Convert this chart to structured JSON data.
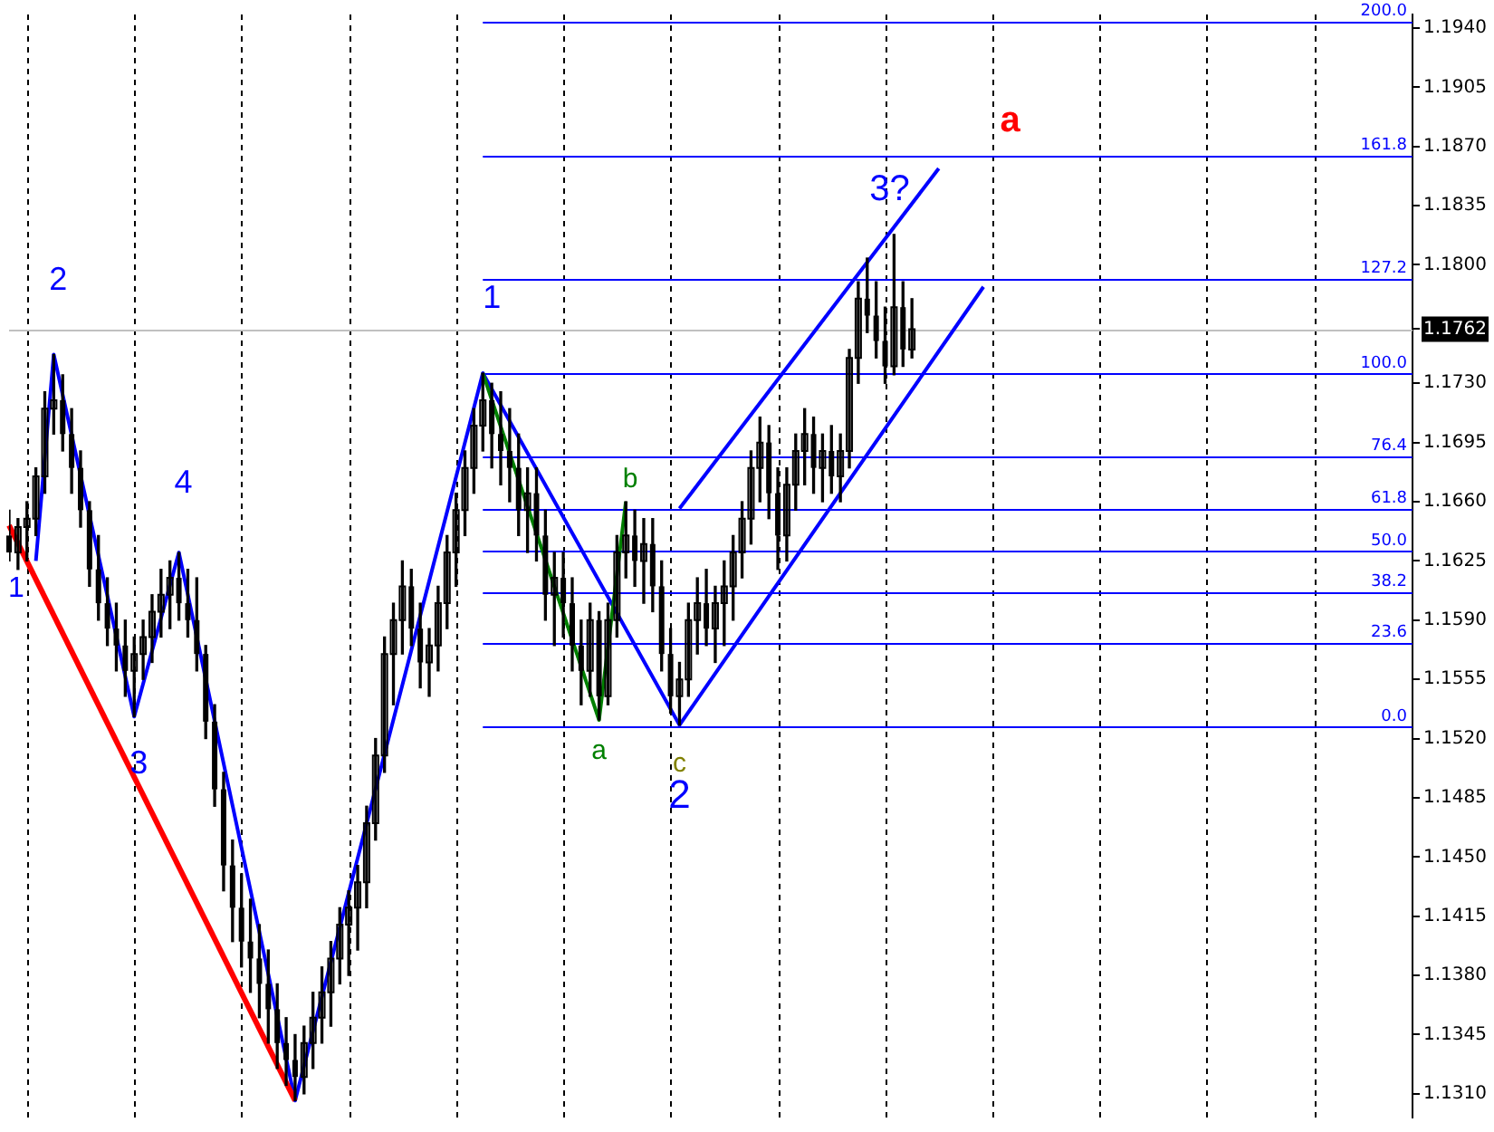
{
  "chart_data": {
    "type": "candlestick",
    "color": "#000000",
    "categories": [
      null,
      null,
      null,
      null,
      null,
      null,
      null,
      null,
      null,
      null,
      null,
      null,
      null,
      null,
      null,
      null,
      null,
      null,
      null,
      null,
      null,
      null,
      null,
      null,
      null,
      null,
      null,
      null,
      null,
      null,
      null,
      null,
      null,
      null,
      null,
      null,
      null,
      null,
      null,
      null,
      null,
      null,
      null,
      null,
      null,
      null,
      null,
      null,
      null,
      null,
      null,
      null,
      null,
      null,
      null,
      null,
      null,
      null,
      null,
      null,
      null,
      null,
      null,
      null,
      null,
      null,
      null,
      null,
      null,
      null,
      null,
      null,
      null,
      null,
      null,
      null,
      null,
      null,
      null,
      null,
      null,
      null,
      null,
      null,
      null,
      null,
      null,
      null,
      null,
      null,
      null,
      null,
      null,
      null,
      null,
      null,
      null,
      null,
      null,
      null,
      null,
      null,
      null,
      null,
      null,
      null,
      null,
      null,
      null,
      null,
      null,
      null,
      null,
      null,
      null,
      null,
      null,
      null,
      null,
      null,
      null,
      null,
      null,
      null,
      null,
      null,
      null,
      null,
      null,
      null,
      null,
      null,
      null,
      null,
      null,
      null,
      null,
      null,
      null,
      null,
      null,
      null,
      null,
      null,
      null,
      null,
      null,
      null,
      null,
      null,
      null,
      null,
      null,
      null,
      null,
      null,
      null,
      null
    ],
    "ohlc": [
      [
        1.164,
        1.1655,
        1.1625,
        1.163
      ],
      [
        1.163,
        1.165,
        1.162,
        1.1645
      ],
      [
        1.1645,
        1.166,
        1.1625,
        1.165
      ],
      [
        1.165,
        1.168,
        1.164,
        1.1675
      ],
      [
        1.1675,
        1.1725,
        1.1665,
        1.1715
      ],
      [
        1.1715,
        1.1747,
        1.17,
        1.172
      ],
      [
        1.172,
        1.1735,
        1.169,
        1.17
      ],
      [
        1.17,
        1.1715,
        1.1665,
        1.168
      ],
      [
        1.168,
        1.169,
        1.1645,
        1.1655
      ],
      [
        1.1655,
        1.166,
        1.161,
        1.162
      ],
      [
        1.162,
        1.164,
        1.159,
        1.16
      ],
      [
        1.16,
        1.1615,
        1.1575,
        1.1585
      ],
      [
        1.1585,
        1.16,
        1.156,
        1.1575
      ],
      [
        1.1575,
        1.159,
        1.1545,
        1.156
      ],
      [
        1.156,
        1.158,
        1.1533,
        1.157
      ],
      [
        1.157,
        1.159,
        1.1555,
        1.158
      ],
      [
        1.158,
        1.1605,
        1.1565,
        1.1595
      ],
      [
        1.1595,
        1.162,
        1.158,
        1.1605
      ],
      [
        1.1605,
        1.1625,
        1.1585,
        1.1615
      ],
      [
        1.1615,
        1.163,
        1.159,
        1.16
      ],
      [
        1.16,
        1.162,
        1.158,
        1.159
      ],
      [
        1.159,
        1.1615,
        1.156,
        1.157
      ],
      [
        1.157,
        1.1575,
        1.152,
        1.153
      ],
      [
        1.153,
        1.154,
        1.148,
        1.149
      ],
      [
        1.149,
        1.15,
        1.143,
        1.1445
      ],
      [
        1.1445,
        1.146,
        1.14,
        1.142
      ],
      [
        1.142,
        1.144,
        1.1385,
        1.14
      ],
      [
        1.14,
        1.1425,
        1.137,
        1.139
      ],
      [
        1.139,
        1.141,
        1.1355,
        1.1375
      ],
      [
        1.1375,
        1.1395,
        1.134,
        1.136
      ],
      [
        1.136,
        1.1375,
        1.1325,
        1.134
      ],
      [
        1.134,
        1.1355,
        1.1315,
        1.133
      ],
      [
        1.133,
        1.1345,
        1.1306,
        1.132
      ],
      [
        1.132,
        1.135,
        1.131,
        1.134
      ],
      [
        1.134,
        1.137,
        1.1325,
        1.1355
      ],
      [
        1.1355,
        1.1385,
        1.134,
        1.137
      ],
      [
        1.137,
        1.14,
        1.135,
        1.139
      ],
      [
        1.139,
        1.142,
        1.1375,
        1.141
      ],
      [
        1.141,
        1.143,
        1.138,
        1.142
      ],
      [
        1.142,
        1.1445,
        1.1395,
        1.1435
      ],
      [
        1.1435,
        1.148,
        1.142,
        1.147
      ],
      [
        1.147,
        1.152,
        1.146,
        1.151
      ],
      [
        1.151,
        1.158,
        1.15,
        1.157
      ],
      [
        1.157,
        1.16,
        1.154,
        1.159
      ],
      [
        1.159,
        1.1625,
        1.157,
        1.161
      ],
      [
        1.161,
        1.162,
        1.1575,
        1.1585
      ],
      [
        1.1585,
        1.16,
        1.155,
        1.1565
      ],
      [
        1.1565,
        1.1585,
        1.1545,
        1.1575
      ],
      [
        1.1575,
        1.161,
        1.156,
        1.16
      ],
      [
        1.16,
        1.164,
        1.1585,
        1.163
      ],
      [
        1.163,
        1.1665,
        1.161,
        1.1655
      ],
      [
        1.1655,
        1.169,
        1.164,
        1.168
      ],
      [
        1.168,
        1.1715,
        1.1665,
        1.1705
      ],
      [
        1.1705,
        1.1736,
        1.169,
        1.172
      ],
      [
        1.172,
        1.173,
        1.168,
        1.17
      ],
      [
        1.17,
        1.1725,
        1.167,
        1.169
      ],
      [
        1.169,
        1.1715,
        1.166,
        1.168
      ],
      [
        1.168,
        1.17,
        1.164,
        1.1655
      ],
      [
        1.1655,
        1.168,
        1.163,
        1.1665
      ],
      [
        1.1665,
        1.168,
        1.1625,
        1.164
      ],
      [
        1.164,
        1.1655,
        1.159,
        1.1605
      ],
      [
        1.1605,
        1.163,
        1.1575,
        1.1615
      ],
      [
        1.1615,
        1.163,
        1.158,
        1.16
      ],
      [
        1.16,
        1.1615,
        1.156,
        1.1575
      ],
      [
        1.1575,
        1.159,
        1.154,
        1.156
      ],
      [
        1.156,
        1.16,
        1.1545,
        1.159
      ],
      [
        1.159,
        1.1595,
        1.1531,
        1.1545
      ],
      [
        1.1545,
        1.16,
        1.154,
        1.159
      ],
      [
        1.159,
        1.164,
        1.158,
        1.163
      ],
      [
        1.163,
        1.166,
        1.1615,
        1.164
      ],
      [
        1.164,
        1.1655,
        1.161,
        1.1625
      ],
      [
        1.1625,
        1.165,
        1.16,
        1.1635
      ],
      [
        1.1635,
        1.165,
        1.1595,
        1.161
      ],
      [
        1.161,
        1.1625,
        1.156,
        1.157
      ],
      [
        1.157,
        1.1585,
        1.1535,
        1.1545
      ],
      [
        1.1545,
        1.1565,
        1.1528,
        1.1555
      ],
      [
        1.1555,
        1.16,
        1.1545,
        1.159
      ],
      [
        1.159,
        1.1615,
        1.157,
        1.16
      ],
      [
        1.16,
        1.162,
        1.1575,
        1.1585
      ],
      [
        1.1585,
        1.161,
        1.1565,
        1.16
      ],
      [
        1.16,
        1.1625,
        1.1575,
        1.161
      ],
      [
        1.161,
        1.164,
        1.159,
        1.163
      ],
      [
        1.163,
        1.166,
        1.1615,
        1.165
      ],
      [
        1.165,
        1.169,
        1.1635,
        1.168
      ],
      [
        1.168,
        1.171,
        1.166,
        1.1695
      ],
      [
        1.1695,
        1.1705,
        1.165,
        1.1665
      ],
      [
        1.1665,
        1.168,
        1.162,
        1.164
      ],
      [
        1.164,
        1.168,
        1.1625,
        1.167
      ],
      [
        1.167,
        1.17,
        1.1655,
        1.169
      ],
      [
        1.169,
        1.1715,
        1.167,
        1.17
      ],
      [
        1.17,
        1.171,
        1.1665,
        1.168
      ],
      [
        1.168,
        1.17,
        1.166,
        1.169
      ],
      [
        1.169,
        1.1705,
        1.1665,
        1.1675
      ],
      [
        1.1675,
        1.17,
        1.166,
        1.169
      ],
      [
        1.169,
        1.175,
        1.168,
        1.1745
      ],
      [
        1.1745,
        1.179,
        1.173,
        1.178
      ],
      [
        1.178,
        1.1804,
        1.176,
        1.177
      ],
      [
        1.177,
        1.179,
        1.1745,
        1.1755
      ],
      [
        1.1755,
        1.1775,
        1.173,
        1.174
      ],
      [
        1.174,
        1.1818,
        1.1735,
        1.1775
      ],
      [
        1.1775,
        1.179,
        1.174,
        1.175
      ],
      [
        1.175,
        1.178,
        1.1745,
        1.1762
      ],
      null,
      null,
      null,
      null,
      null,
      null,
      null,
      null,
      null,
      null,
      null,
      null,
      null,
      null,
      null,
      null,
      null,
      null,
      null,
      null,
      null,
      null,
      null,
      null,
      null,
      null,
      null,
      null,
      null,
      null,
      null,
      null,
      null,
      null,
      null,
      null,
      null,
      null,
      null,
      null,
      null,
      null,
      null,
      null,
      null,
      null,
      null,
      null,
      null,
      null,
      null,
      null,
      null,
      null,
      null,
      null
    ],
    "series": [
      {
        "type": "line",
        "color": "#0000ff",
        "values": [
          null,
          null,
          null,
          1.1625,
          null,
          1.1747,
          null,
          null,
          null,
          null,
          null,
          null,
          null,
          null,
          1.1533,
          null,
          null,
          null,
          null,
          1.163,
          null,
          null,
          null,
          null,
          null,
          null,
          null,
          null,
          null,
          null,
          null,
          null,
          1.1306,
          null,
          null,
          null,
          null,
          null,
          null,
          null,
          null,
          null,
          null,
          null,
          null,
          null,
          null,
          null,
          null,
          null,
          null,
          null,
          null,
          1.1736,
          null,
          null,
          null,
          null,
          null,
          null,
          null,
          null,
          null,
          null,
          null,
          null,
          null,
          null,
          null,
          null,
          null,
          null,
          null,
          null,
          null,
          1.1528,
          null,
          null,
          null,
          null,
          null,
          null,
          null,
          null,
          null,
          null,
          null,
          null,
          null,
          null,
          null,
          null,
          null,
          null,
          null,
          null,
          null,
          null,
          null,
          null,
          null,
          null,
          null,
          null,
          null,
          null,
          null,
          null,
          null,
          1.1787,
          null,
          null,
          null,
          null,
          null,
          null,
          null,
          null,
          null,
          null,
          null,
          null,
          null,
          null,
          null,
          null,
          null,
          null,
          null,
          null,
          null,
          null,
          null,
          null,
          null,
          null,
          null,
          null,
          null,
          null,
          null,
          null,
          null,
          null,
          null,
          null,
          null,
          null,
          null,
          null,
          null,
          null,
          null,
          null,
          null,
          null,
          null,
          null
        ]
      },
      {
        "type": "line",
        "color": "#0000ff",
        "values": [
          null,
          null,
          null,
          null,
          null,
          null,
          null,
          null,
          null,
          null,
          null,
          null,
          null,
          null,
          null,
          null,
          null,
          null,
          null,
          null,
          null,
          null,
          null,
          null,
          null,
          null,
          null,
          null,
          null,
          null,
          null,
          null,
          null,
          null,
          null,
          null,
          null,
          null,
          null,
          null,
          null,
          null,
          null,
          null,
          null,
          null,
          null,
          null,
          null,
          null,
          null,
          null,
          null,
          null,
          null,
          null,
          null,
          null,
          null,
          null,
          null,
          null,
          null,
          null,
          null,
          null,
          null,
          null,
          null,
          null,
          null,
          null,
          null,
          null,
          null,
          1.1656,
          null,
          null,
          null,
          null,
          null,
          null,
          null,
          null,
          null,
          null,
          null,
          null,
          null,
          null,
          null,
          null,
          null,
          null,
          null,
          null,
          null,
          null,
          null,
          null,
          null,
          null,
          null,
          null,
          1.1857,
          null,
          null,
          null,
          null,
          null,
          null,
          null,
          null,
          null,
          null,
          null,
          null,
          null,
          null,
          null,
          null,
          null,
          null,
          null,
          null,
          null,
          null,
          null,
          null,
          null,
          null,
          null,
          null,
          null,
          null,
          null,
          null,
          null,
          null,
          null,
          null,
          null,
          null,
          null,
          null,
          null,
          null,
          null,
          null,
          null,
          null,
          null,
          null,
          null,
          null,
          null,
          null,
          null
        ]
      },
      {
        "type": "line",
        "color": "#ff0000",
        "values": [
          1.1646,
          null,
          null,
          null,
          null,
          null,
          null,
          null,
          null,
          null,
          null,
          null,
          null,
          null,
          null,
          null,
          null,
          null,
          null,
          null,
          null,
          null,
          null,
          null,
          null,
          null,
          null,
          null,
          null,
          null,
          null,
          null,
          1.1306,
          null,
          null,
          null,
          null,
          null,
          null,
          null,
          null,
          null,
          null,
          null,
          null,
          null,
          null,
          null,
          null,
          null,
          null,
          null,
          null,
          null,
          null,
          null,
          null,
          null,
          null,
          null,
          null,
          null,
          null,
          null,
          null,
          null,
          null,
          null,
          null,
          null,
          null,
          null,
          null,
          null,
          null,
          null,
          null,
          null,
          null,
          null,
          null,
          null,
          null,
          null,
          null,
          null,
          null,
          null,
          null,
          null,
          null,
          null,
          null,
          null,
          null,
          null,
          null,
          null,
          null,
          null,
          null,
          null,
          null,
          null,
          null,
          null,
          null,
          null,
          null,
          null,
          null,
          null,
          null,
          null,
          null,
          null,
          null,
          null,
          null,
          null,
          null,
          null,
          null,
          null,
          null,
          null,
          null,
          null,
          null,
          null,
          null,
          null,
          null,
          null,
          null,
          null,
          null,
          null,
          null,
          null,
          null,
          null,
          null,
          null,
          null,
          null,
          null,
          null,
          null,
          null,
          null,
          null,
          null,
          null,
          null,
          null,
          null,
          null
        ]
      },
      {
        "type": "line",
        "color": "#008000",
        "values": [
          null,
          null,
          null,
          null,
          null,
          null,
          null,
          null,
          null,
          null,
          null,
          null,
          null,
          null,
          null,
          null,
          null,
          null,
          null,
          null,
          null,
          null,
          null,
          null,
          null,
          null,
          null,
          null,
          null,
          null,
          null,
          null,
          null,
          null,
          null,
          null,
          null,
          null,
          null,
          null,
          null,
          null,
          null,
          null,
          null,
          null,
          null,
          null,
          null,
          null,
          null,
          null,
          null,
          1.1736,
          null,
          null,
          null,
          null,
          null,
          null,
          null,
          null,
          null,
          null,
          null,
          null,
          1.1531,
          null,
          null,
          1.166,
          null,
          null,
          null,
          null,
          null,
          null,
          null,
          null,
          null,
          null,
          null,
          null,
          null,
          null,
          null,
          null,
          null,
          null,
          null,
          null,
          null,
          null,
          null,
          null,
          null,
          null,
          null,
          null,
          null,
          null,
          null,
          null,
          null,
          null,
          null,
          null,
          null,
          null,
          null,
          null,
          null,
          null,
          null,
          null,
          null,
          null,
          null,
          null,
          null,
          null,
          null,
          null,
          null,
          null,
          null,
          null,
          null,
          null,
          null,
          null,
          null,
          null,
          null,
          null,
          null,
          null,
          null,
          null,
          null,
          null,
          null,
          null,
          null,
          null,
          null,
          null,
          null,
          null,
          null,
          null,
          null,
          null,
          null,
          null,
          null,
          null,
          null,
          null
        ]
      }
    ],
    "ylim": [
      1.1296,
      1.1948
    ],
    "yticks": [
      {
        "value": 1.131,
        "label": "1.1310"
      },
      1.1345,
      {
        "value": 1.138,
        "label": "1.1380"
      },
      1.1415,
      {
        "value": 1.145,
        "label": "1.1450"
      },
      1.1485,
      {
        "value": 1.152,
        "label": "1.1520"
      },
      1.1555,
      {
        "value": 1.159,
        "label": "1.1590"
      },
      1.1625,
      {
        "value": 1.166,
        "label": "1.1660"
      },
      1.1695,
      {
        "value": 1.173,
        "label": "1.1730"
      },
      1.1762,
      {
        "value": 1.18,
        "label": "1.1800"
      },
      1.1835,
      {
        "value": 1.187,
        "label": "1.1870"
      },
      1.1905,
      {
        "value": 1.194,
        "label": "1.1940"
      }
    ],
    "ref_lines": [
      {
        "axis": "y",
        "value": 1.1527,
        "color": "#0000ff"
      },
      {
        "axis": "y",
        "value": 1.1577,
        "color": "#0000ff"
      },
      {
        "axis": "y",
        "value": 1.1607,
        "color": "#0000ff"
      },
      {
        "axis": "y",
        "value": 1.1631,
        "color": "#0000ff"
      },
      {
        "axis": "y",
        "value": 1.1656,
        "color": "#0000ff"
      },
      {
        "axis": "y",
        "value": 1.1687,
        "color": "#0000ff"
      },
      {
        "axis": "y",
        "value": 1.1736,
        "color": "#0000ff"
      },
      {
        "axis": "y",
        "value": 1.1792,
        "color": "#0000ff"
      },
      {
        "axis": "y",
        "value": 1.1865,
        "color": "#0000ff"
      },
      {
        "axis": "y",
        "value": 1.1944,
        "color": "#0000ff"
      },
      {
        "axis": "y",
        "value": 1.1762,
        "color": "#c0c0c0"
      }
    ],
    "annotations": [
      {
        "text": "0.0",
        "y": 1.1527
      },
      {
        "text": "23.6",
        "y": 1.1577
      },
      {
        "text": "38.2",
        "y": 1.1607
      },
      {
        "text": "50.0",
        "y": 1.1631
      },
      {
        "text": "61.8",
        "y": 1.1656
      },
      {
        "text": "76.4",
        "y": 1.1687
      },
      {
        "text": "100.0",
        "y": 1.1736
      },
      {
        "text": "127.2",
        "y": 1.1792
      },
      {
        "text": "161.8",
        "y": 1.1865
      },
      {
        "text": "200.0",
        "y": 1.1944
      },
      "1",
      "2",
      "3",
      "4",
      "1",
      "b",
      "a",
      "c",
      "2",
      "3?",
      "a"
    ],
    "legend": false
  }
}
